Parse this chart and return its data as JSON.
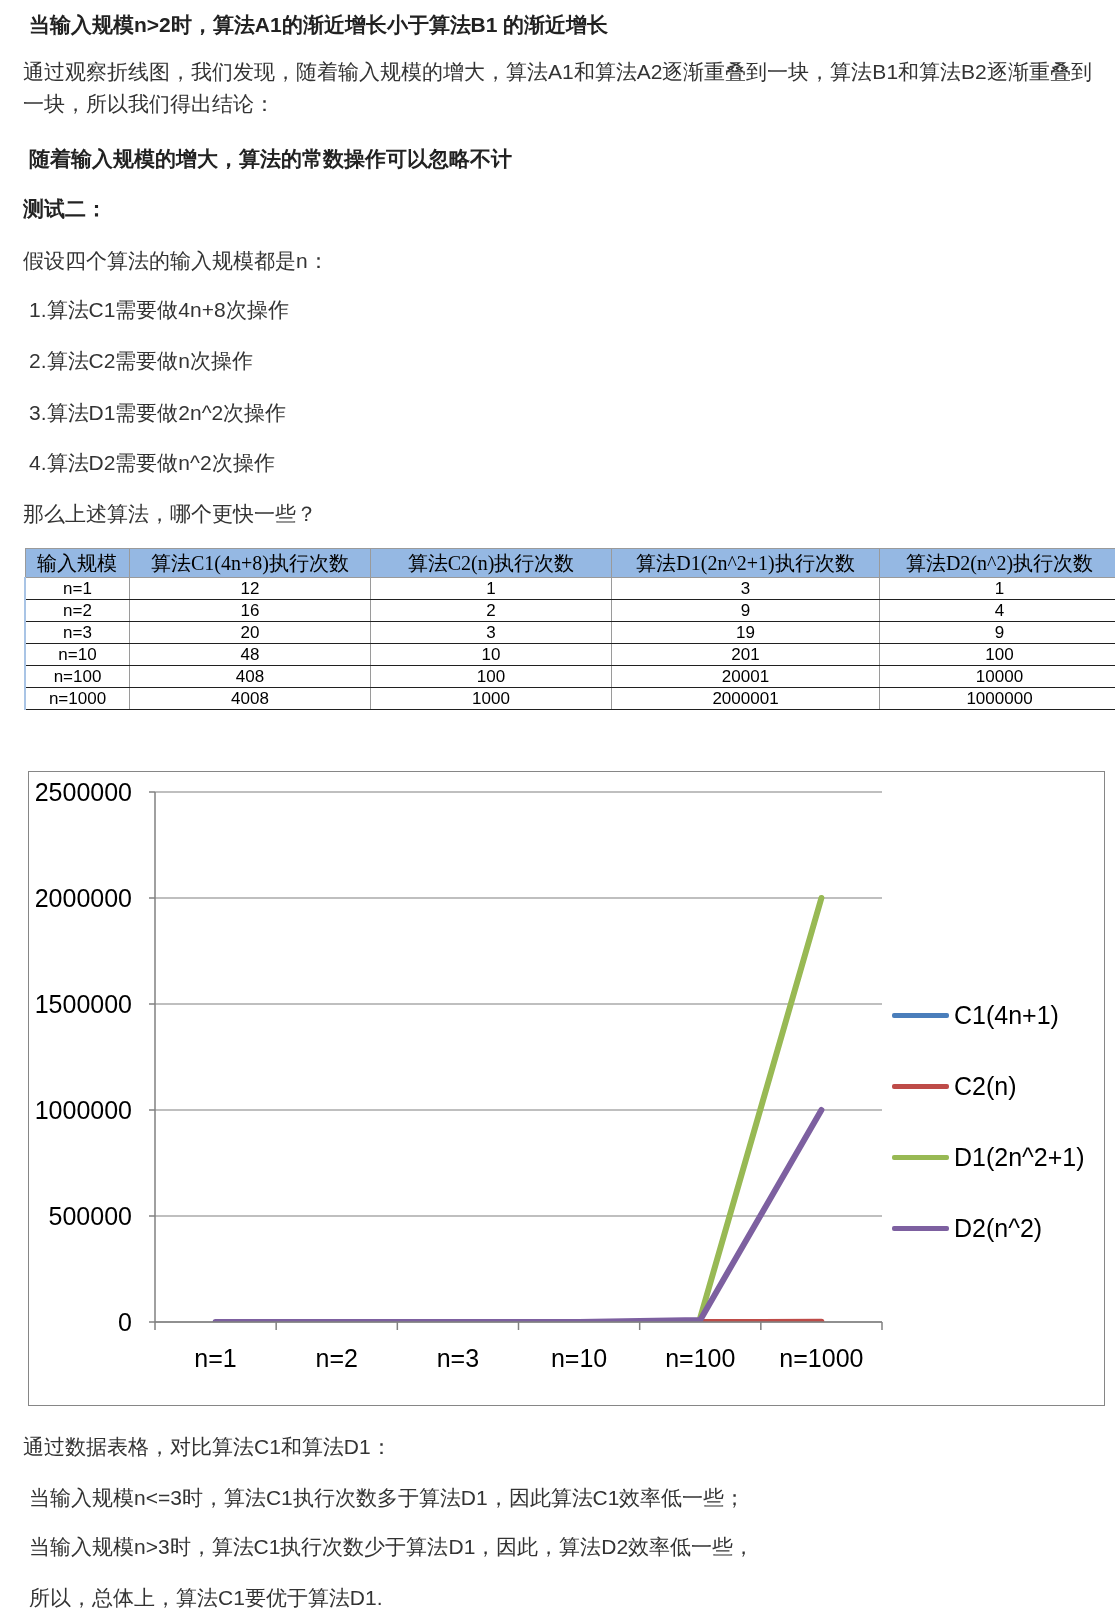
{
  "chart_data": [
    {
      "type": "other",
      "categories": [
        "n=1",
        "n=2",
        "n=3",
        "n=10",
        "n=100",
        "n=1000"
      ],
      "series": [
        {
          "name": "算法C1(4n+8)执行次数",
          "values": [
            12,
            16,
            20,
            48,
            408,
            4008
          ]
        },
        {
          "name": "算法C2(n)执行次数",
          "values": [
            1,
            2,
            3,
            10,
            100,
            1000
          ]
        },
        {
          "name": "算法D1(2n^2+1)执行次数",
          "values": [
            3,
            9,
            19,
            201,
            20001,
            2000001
          ]
        },
        {
          "name": "算法D2(n^2)执行次数",
          "values": [
            1,
            4,
            9,
            100,
            10000,
            1000000
          ]
        }
      ],
      "data_labels": true,
      "annotations": [
        "当输入规模n>2时，算法A1的渐近增长小于算法B1 的渐近增长",
        "通过观察折线图，我们发现，随着输入规模的增大，算法A1和算法A2逐渐重叠到一块，算法B1和算法B2逐渐重叠到一块，所以我们得出结论：",
        "随着输入规模的增大，算法的常数操作可以忽略不计",
        "测试二：",
        "假设四个算法的输入规模都是n：",
        "1.算法C1需要做4n+8次操作",
        "2.算法C2需要做n次操作",
        "3.算法D1需要做2n^2次操作",
        "4.算法D2需要做n^2次操作",
        "那么上述算法，哪个更快一些？",
        "输入规模"
      ]
    },
    {
      "type": "line",
      "categories": [
        "n=1",
        "n=2",
        "n=3",
        "n=10",
        "n=100",
        "n=1000"
      ],
      "series": [
        {
          "name": "C1(4n+1)",
          "color": "#4a7ebb",
          "values": [
            null,
            null,
            null,
            null,
            null,
            null
          ]
        },
        {
          "name": "C2(n)",
          "color": "#be4b48",
          "values": [
            null,
            null,
            null,
            null,
            100,
            1000
          ]
        },
        {
          "name": "D1(2n^2+1)",
          "color": "#98b954",
          "values": [
            null,
            null,
            null,
            null,
            20001,
            2000001
          ]
        },
        {
          "name": "D2(n^2)",
          "color": "#7d60a0",
          "values": [
            1,
            4,
            9,
            100,
            10000,
            1000000
          ]
        }
      ],
      "ylim": [
        0,
        2500000
      ],
      "yticks": [
        0,
        500000,
        1000000,
        1500000,
        2000000,
        2500000
      ],
      "grid": "y",
      "legend": "right",
      "marker": "none",
      "line_style": "solid",
      "annotations": [
        "通过数据表格，对比算法C1和算法D1：",
        "当输入规模n<=3时，算法C1执行次数多于算法D1，因此算法C1效率低一些；",
        "当输入规模n>3时，算法C1执行次数少于算法D1，因此，算法D2效率低一些，",
        "所以，总体上，算法C1要优于算法D1."
      ]
    }
  ]
}
